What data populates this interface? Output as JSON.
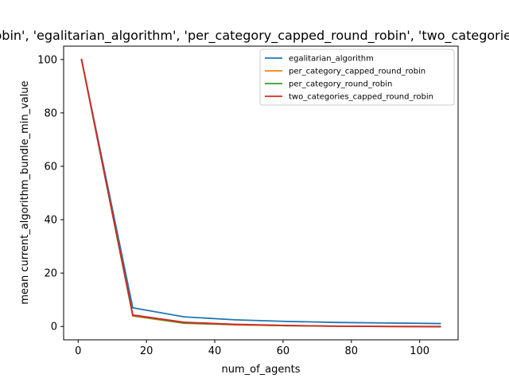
{
  "chart_data": {
    "type": "line",
    "title": "['per_category_round_robin', 'egalitarian_algorithm', 'per_category_capped_round_robin', 'two_categories_capped_round_robin']",
    "xlabel": "num_of_agents",
    "ylabel": "mean current_algorithm_bundle_min_value",
    "xlim": [
      -4.25,
      111.25
    ],
    "ylim": [
      -5,
      105
    ],
    "xticks": [
      0,
      20,
      40,
      60,
      80,
      100
    ],
    "yticks": [
      0,
      20,
      40,
      60,
      80,
      100
    ],
    "x": [
      1,
      16,
      31,
      46,
      61,
      76,
      91,
      106
    ],
    "legend_position": "upper right",
    "grid": false,
    "series": [
      {
        "name": "egalitarian_algorithm",
        "color": "#1f77b4",
        "values": [
          100,
          7.0,
          3.6,
          2.5,
          1.9,
          1.5,
          1.3,
          1.1
        ]
      },
      {
        "name": "per_category_capped_round_robin",
        "color": "#ff7f0e",
        "values": [
          100,
          3.9,
          1.2,
          0.6,
          0.3,
          0.1,
          0.0,
          0.0
        ]
      },
      {
        "name": "per_category_round_robin",
        "color": "#2ca02c",
        "values": [
          100,
          4.1,
          1.3,
          0.7,
          0.3,
          0.1,
          0.0,
          0.0
        ]
      },
      {
        "name": "two_categories_capped_round_robin",
        "color": "#d62728",
        "values": [
          100,
          4.3,
          1.6,
          0.8,
          0.4,
          0.1,
          0.0,
          -0.1
        ]
      }
    ]
  }
}
